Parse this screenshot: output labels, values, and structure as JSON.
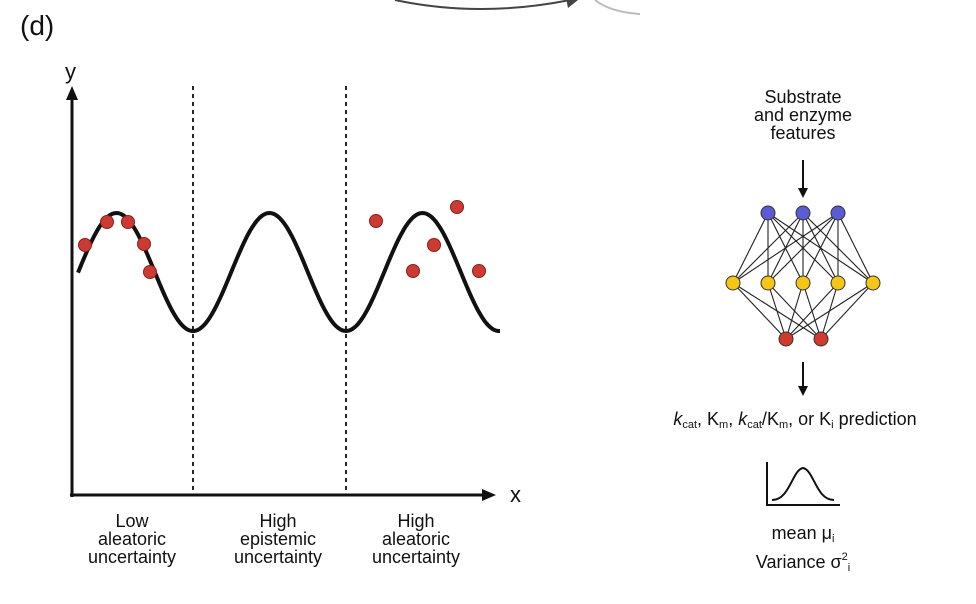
{
  "panel_label": "(d)",
  "axes": {
    "y_letter": "y",
    "x_letter": "x"
  },
  "regions": [
    {
      "lines": [
        "Low",
        "aleatoric",
        "uncertainty"
      ]
    },
    {
      "lines": [
        "High",
        "epistemic",
        "uncertainty"
      ]
    },
    {
      "lines": [
        "High",
        "aleatoric",
        "uncertainty"
      ]
    }
  ],
  "network": {
    "input_label_lines": [
      "Substrate",
      "and enzyme",
      "features"
    ],
    "layers": {
      "input": 3,
      "hidden": 5,
      "output": 2
    },
    "colors": {
      "input": "#5b5bd6",
      "hidden": "#f5c518",
      "output": "#d03a2f",
      "edge": "#222222"
    }
  },
  "prediction": {
    "k": "k",
    "cat": "cat",
    "km_K": "K",
    "m": "m",
    "ki_K": "K",
    "i": "i",
    "sep1": ", ",
    "slash": "/",
    "or": ", or ",
    "suffix": " prediction"
  },
  "distribution": {
    "mean_text": "mean μ",
    "mean_sub": "i",
    "variance_text": "Variance σ",
    "variance_sup": "2",
    "variance_sub": "i"
  },
  "colors": {
    "curve": "#111111",
    "points": "#cc3b33",
    "points_stroke": "#8a1f1a"
  }
}
